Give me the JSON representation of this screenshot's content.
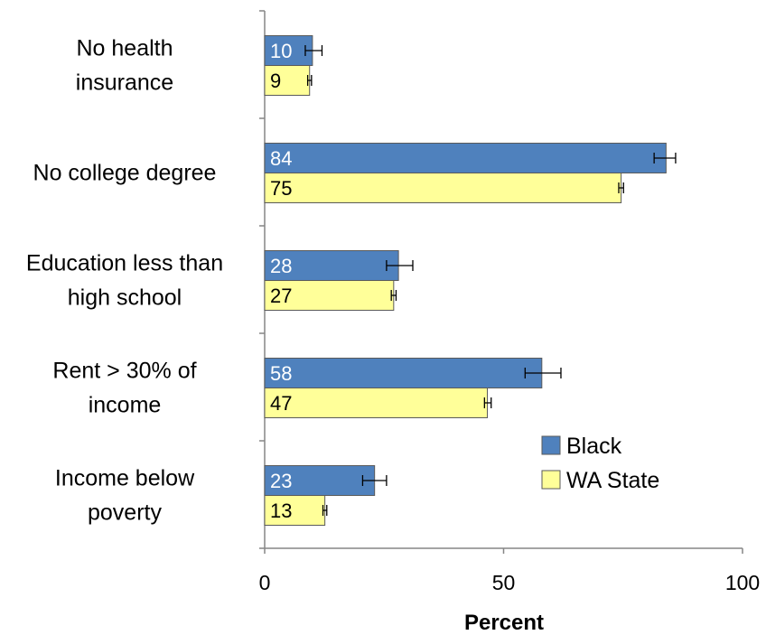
{
  "chart_data": {
    "type": "bar",
    "orientation": "horizontal",
    "categories": [
      [
        "No health",
        "insurance"
      ],
      [
        "No college degree"
      ],
      [
        "Education less than",
        "high school"
      ],
      [
        "Rent > 30% of",
        "income"
      ],
      [
        "Income below",
        "poverty"
      ]
    ],
    "series": [
      {
        "name": "Black",
        "color": "#4F81BD",
        "label_color": "#ffffff",
        "values": [
          10,
          84,
          28,
          58,
          23
        ],
        "labels": [
          "10",
          "84",
          "28",
          "58",
          "23"
        ],
        "error_low": [
          8.5,
          81.5,
          25.5,
          54.5,
          20.5
        ],
        "error_high": [
          12,
          86,
          31,
          62,
          25.5
        ]
      },
      {
        "name": "WA State",
        "color": "#FFFF99",
        "label_color": "#000000",
        "values": [
          9.4,
          74.6,
          27,
          46.6,
          12.6
        ],
        "labels": [
          "9",
          "75",
          "27",
          "47",
          "13"
        ],
        "error_low": [
          9,
          74.1,
          26.5,
          46,
          12.2
        ],
        "error_high": [
          9.8,
          75.1,
          27.5,
          47.4,
          13
        ]
      }
    ],
    "xlabel": "Percent",
    "xlim": [
      0,
      100
    ],
    "xticks": [
      0,
      50,
      100
    ],
    "legend_position": "right",
    "grid": false
  }
}
